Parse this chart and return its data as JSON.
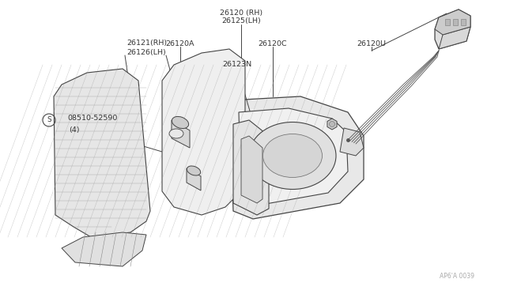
{
  "bg_color": "#ffffff",
  "line_color": "#444444",
  "text_color": "#333333",
  "watermark": "AP6'A 0039",
  "figsize": [
    6.4,
    3.72
  ],
  "dpi": 100,
  "fs": 6.8,
  "labels": {
    "top1": "26120 (RH)",
    "top2": "26125(LH)",
    "mid1a": "26121(RH)",
    "mid1b": "26126(LH)",
    "mid2": "26120A",
    "mid3": "26120C",
    "mid4": "26120U",
    "mid5": "26123N",
    "screw_s": "S",
    "screw_num": "08510-52590",
    "screw_qty": "(4)"
  }
}
